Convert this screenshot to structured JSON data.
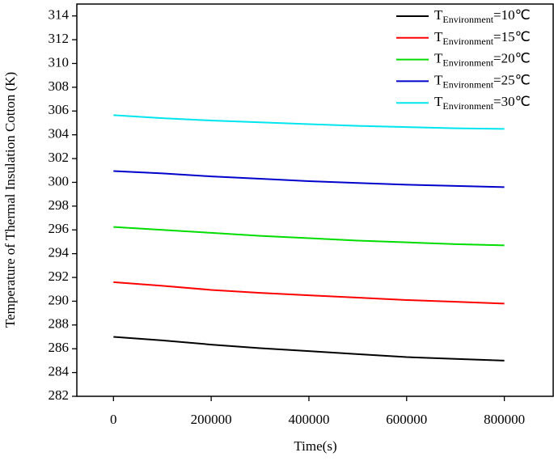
{
  "chart_data": {
    "type": "line",
    "x_label": "Time(s)",
    "y_label": "Temperature of Thermal Insulation Cotton (K)",
    "x": [
      0,
      100000,
      200000,
      300000,
      400000,
      500000,
      600000,
      700000,
      800000
    ],
    "series": [
      {
        "name": "TEnvironment=10℃",
        "color": "#000000",
        "values": [
          287.0,
          286.7,
          286.35,
          286.05,
          285.8,
          285.55,
          285.3,
          285.15,
          285.0
        ]
      },
      {
        "name": "TEnvironment=15℃",
        "color": "#ff0000",
        "values": [
          291.6,
          291.3,
          290.95,
          290.7,
          290.5,
          290.3,
          290.1,
          289.95,
          289.8
        ]
      },
      {
        "name": "TEnvironment=20℃",
        "color": "#00dd00",
        "values": [
          296.25,
          296.0,
          295.75,
          295.5,
          295.3,
          295.1,
          294.95,
          294.8,
          294.7
        ]
      },
      {
        "name": "TEnvironment=25℃",
        "color": "#0000cc",
        "values": [
          300.95,
          300.75,
          300.5,
          300.3,
          300.1,
          299.95,
          299.8,
          299.7,
          299.6
        ]
      },
      {
        "name": "TEnvironment=30℃",
        "color": "#00e5ee",
        "values": [
          305.65,
          305.4,
          305.2,
          305.05,
          304.9,
          304.75,
          304.65,
          304.55,
          304.5
        ]
      }
    ],
    "xlim": [
      -75000,
      900000
    ],
    "xticks": [
      0,
      200000,
      400000,
      600000,
      800000
    ],
    "ylim": [
      282,
      315
    ],
    "yticks": [
      282,
      284,
      286,
      288,
      290,
      292,
      294,
      296,
      298,
      300,
      302,
      304,
      306,
      308,
      310,
      312,
      314
    ],
    "legend": "upper-right"
  }
}
